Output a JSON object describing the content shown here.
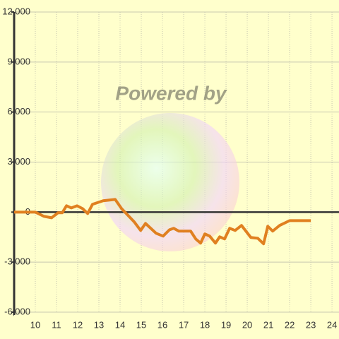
{
  "chart_data": {
    "type": "line",
    "watermark": "Powered by",
    "x": [
      9.0,
      10.0,
      10.4,
      10.77,
      11.07,
      11.27,
      11.47,
      11.7,
      11.97,
      12.23,
      12.47,
      12.7,
      13.2,
      13.77,
      14.07,
      14.67,
      14.97,
      15.2,
      15.7,
      16.03,
      16.33,
      16.53,
      16.77,
      17.33,
      17.57,
      17.8,
      18.0,
      18.23,
      18.5,
      18.7,
      18.93,
      19.17,
      19.43,
      19.73,
      20.17,
      20.5,
      20.77,
      20.97,
      21.2,
      21.53,
      22.0,
      23.0
    ],
    "series": [
      {
        "color": "#e08020",
        "values": [
          0,
          0,
          -250,
          -340,
          -40,
          -40,
          380,
          250,
          380,
          210,
          -85,
          470,
          680,
          760,
          210,
          -590,
          -1100,
          -680,
          -1270,
          -1440,
          -1060,
          -970,
          -1140,
          -1140,
          -1610,
          -1860,
          -1310,
          -1440,
          -1860,
          -1480,
          -1610,
          -970,
          -1100,
          -800,
          -1520,
          -1570,
          -1900,
          -850,
          -1140,
          -800,
          -510,
          -510
        ]
      }
    ],
    "xlim": [
      9,
      24.33
    ],
    "xticks": [
      10,
      11,
      12,
      13,
      14,
      15,
      16,
      17,
      18,
      19,
      20,
      21,
      22,
      23,
      24
    ],
    "ylim": [
      -6000,
      12000
    ],
    "yticks": [
      {
        "value": -6000,
        "label": "-6,000"
      },
      {
        "value": -3000,
        "label": "-3,000"
      },
      0,
      {
        "value": 3000,
        "label": "3,000"
      },
      {
        "value": 6000,
        "label": "6,000"
      },
      {
        "value": 9000,
        "label": "9,000"
      },
      {
        "value": 12000,
        "label": "12,000"
      }
    ],
    "grid": true
  }
}
